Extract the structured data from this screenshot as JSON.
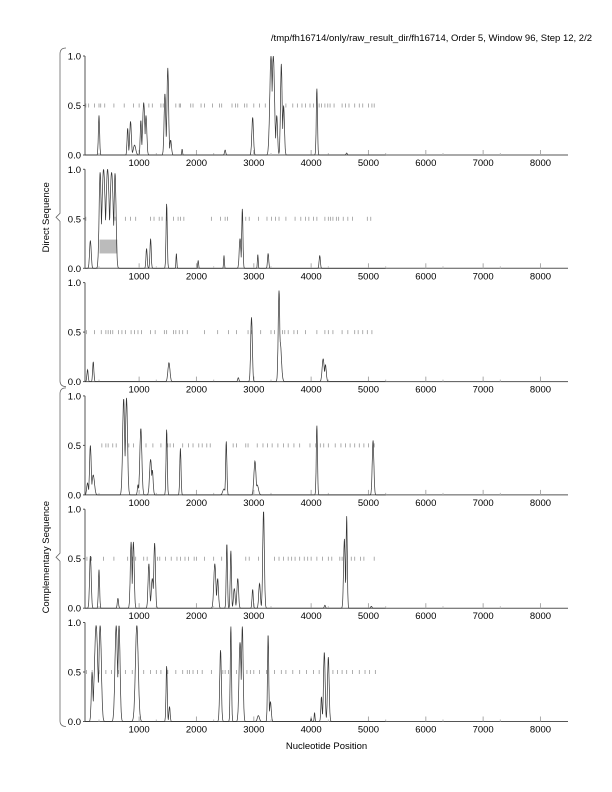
{
  "chart_data": {
    "type": "line",
    "title": "/tmp/fh16714/only/raw_result_dir/fh16714, Order 5, Window 96, Step 12, 2/2",
    "xlabel": "Nucleotide Position",
    "xlim": [
      56,
      8480
    ],
    "ylim": [
      0,
      1
    ],
    "x_ticks": [
      1000,
      2000,
      3000,
      4000,
      5000,
      6000,
      7000,
      8000
    ],
    "x_tick_labels": [
      "1000",
      "2000",
      "3000",
      "4000",
      "5000",
      "6000",
      "7000",
      "8000"
    ],
    "y_tick_labels": [
      "1.0",
      "0.5",
      "0.0"
    ],
    "groups": [
      {
        "label": "Direct Sequence",
        "panels": [
          0,
          1,
          2
        ]
      },
      {
        "label": "Complementary Sequence",
        "panels": [
          3,
          4,
          5
        ]
      }
    ],
    "panels": [
      {
        "frame": "direct-1",
        "peaks": [
          [
            300,
            0.4,
            15
          ],
          [
            800,
            0.27,
            15
          ],
          [
            850,
            0.34,
            20
          ],
          [
            920,
            0.1,
            30
          ],
          [
            1030,
            0.35,
            15
          ],
          [
            1080,
            0.53,
            25
          ],
          [
            1120,
            0.4,
            20
          ],
          [
            1450,
            0.62,
            20
          ],
          [
            1500,
            0.88,
            20
          ],
          [
            1550,
            0.15,
            20
          ],
          [
            1750,
            0.06,
            10
          ],
          [
            2500,
            0.05,
            15
          ],
          [
            2980,
            0.38,
            20
          ],
          [
            3300,
            1.0,
            30
          ],
          [
            3340,
            1.0,
            30
          ],
          [
            3400,
            0.4,
            20
          ],
          [
            3480,
            0.92,
            20
          ],
          [
            3520,
            0.5,
            20
          ],
          [
            4100,
            0.67,
            15
          ],
          [
            4620,
            0.02,
            15
          ]
        ],
        "stops": [
          70,
          120,
          220,
          300,
          330,
          400,
          560,
          740,
          900,
          1000,
          1170,
          1230,
          1380,
          1420,
          1640,
          1700,
          1720,
          1900,
          1940,
          2080,
          2140,
          2280,
          2400,
          2440,
          2620,
          2680,
          2720,
          2840,
          2880,
          3000,
          3100,
          3200,
          3560,
          3680,
          3760,
          3840,
          3900,
          3980,
          4040,
          4140,
          4180,
          4240,
          4290,
          4330,
          4400,
          4540,
          4600,
          4660,
          4760,
          4840,
          4900,
          5000,
          5060,
          5100
        ]
      },
      {
        "frame": "direct-2",
        "peaks": [
          [
            150,
            0.28,
            20
          ],
          [
            320,
            0.97,
            25
          ],
          [
            380,
            1.0,
            40
          ],
          [
            450,
            1.0,
            40
          ],
          [
            520,
            0.97,
            40
          ],
          [
            580,
            0.96,
            25
          ],
          [
            1130,
            0.2,
            15
          ],
          [
            1200,
            0.3,
            15
          ],
          [
            1480,
            0.65,
            15
          ],
          [
            1650,
            0.15,
            10
          ],
          [
            2030,
            0.08,
            10
          ],
          [
            2480,
            0.13,
            10
          ],
          [
            2760,
            0.3,
            20
          ],
          [
            2800,
            0.6,
            15
          ],
          [
            3070,
            0.14,
            10
          ],
          [
            3250,
            0.15,
            15
          ],
          [
            4150,
            0.13,
            15
          ]
        ],
        "stops": [
          70,
          580,
          760,
          850,
          940,
          1200,
          1260,
          1350,
          1400,
          1480,
          1600,
          1680,
          1720,
          1780,
          2260,
          2420,
          2500,
          2540,
          2800,
          2860,
          2920,
          3080,
          3230,
          3310,
          3380,
          3440,
          3560,
          3720,
          3820,
          3900,
          3960,
          4040,
          4100,
          4240,
          4300,
          4340,
          4380,
          4440,
          4480,
          4560,
          4640,
          4720,
          4980,
          5040
        ]
      },
      {
        "frame": "direct-3",
        "peaks": [
          [
            100,
            0.12,
            15
          ],
          [
            200,
            0.2,
            15
          ],
          [
            1520,
            0.19,
            25
          ],
          [
            2730,
            0.04,
            15
          ],
          [
            2960,
            0.65,
            20
          ],
          [
            3440,
            0.92,
            20
          ],
          [
            3460,
            0.4,
            30
          ],
          [
            4210,
            0.23,
            25
          ],
          [
            4250,
            0.17,
            20
          ]
        ],
        "stops": [
          80,
          220,
          340,
          420,
          460,
          500,
          540,
          640,
          700,
          760,
          860,
          920,
          980,
          1040,
          1200,
          1280,
          1440,
          1480,
          1600,
          1640,
          1700,
          1760,
          1840,
          2140,
          2370,
          2560,
          2700,
          2900,
          2960,
          3120,
          3300,
          3360,
          3500,
          3540,
          3600,
          3700,
          3760,
          3900,
          4100,
          4240,
          4300,
          4380,
          4540,
          4640,
          4760,
          4820,
          4900,
          4980,
          5060
        ]
      },
      {
        "frame": "complementary-1",
        "peaks": [
          [
            100,
            0.12,
            20
          ],
          [
            150,
            0.5,
            20
          ],
          [
            200,
            0.2,
            30
          ],
          [
            730,
            0.97,
            25
          ],
          [
            780,
            0.98,
            25
          ],
          [
            980,
            0.1,
            15
          ],
          [
            1030,
            0.67,
            25
          ],
          [
            1200,
            0.36,
            25
          ],
          [
            1230,
            0.25,
            20
          ],
          [
            1480,
            0.66,
            15
          ],
          [
            1720,
            0.47,
            15
          ],
          [
            2480,
            0.06,
            30
          ],
          [
            2520,
            0.54,
            15
          ],
          [
            3020,
            0.34,
            25
          ],
          [
            3060,
            0.1,
            30
          ],
          [
            4100,
            0.7,
            15
          ],
          [
            5080,
            0.55,
            20
          ]
        ],
        "stops": [
          350,
          420,
          460,
          540,
          600,
          820,
          900,
          1120,
          1240,
          1380,
          1500,
          1540,
          1600,
          1760,
          1860,
          1940,
          2040,
          2100,
          2180,
          2240,
          2640,
          2700,
          2860,
          2900,
          3060,
          3160,
          3240,
          3320,
          3420,
          3520,
          3600,
          3700,
          3800,
          3980,
          4080,
          4160,
          4220,
          4300,
          4420,
          4520,
          4600,
          4680,
          4760,
          4840,
          4920,
          5000,
          5100
        ]
      },
      {
        "frame": "complementary-2",
        "peaks": [
          [
            150,
            0.53,
            20
          ],
          [
            300,
            0.39,
            15
          ],
          [
            630,
            0.1,
            15
          ],
          [
            860,
            0.67,
            20
          ],
          [
            900,
            0.67,
            20
          ],
          [
            1170,
            0.45,
            20
          ],
          [
            1230,
            0.3,
            25
          ],
          [
            1270,
            0.66,
            20
          ],
          [
            2320,
            0.45,
            25
          ],
          [
            2370,
            0.3,
            20
          ],
          [
            2530,
            0.65,
            15
          ],
          [
            2600,
            0.58,
            15
          ],
          [
            2660,
            0.2,
            20
          ],
          [
            2720,
            0.3,
            20
          ],
          [
            2980,
            0.19,
            15
          ],
          [
            3100,
            0.25,
            20
          ],
          [
            3170,
            0.98,
            20
          ],
          [
            4240,
            0.03,
            15
          ],
          [
            4580,
            0.7,
            20
          ],
          [
            4620,
            0.93,
            15
          ],
          [
            5050,
            0.02,
            15
          ]
        ],
        "stops": [
          90,
          170,
          380,
          560,
          800,
          880,
          940,
          1080,
          1140,
          1320,
          1360,
          1460,
          1560,
          1660,
          1720,
          1800,
          1860,
          1960,
          2000,
          2140,
          2300,
          2440,
          2860,
          2920,
          3080,
          3360,
          3440,
          3520,
          3600,
          3660,
          3720,
          3800,
          3880,
          3940,
          4000,
          4100,
          4200,
          4300,
          4360,
          4500,
          4540,
          4700,
          4760,
          4860,
          4920,
          5100
        ]
      },
      {
        "frame": "complementary-3",
        "peaks": [
          [
            180,
            0.5,
            20
          ],
          [
            250,
            0.97,
            40
          ],
          [
            320,
            0.97,
            30
          ],
          [
            600,
            0.97,
            30
          ],
          [
            650,
            0.97,
            25
          ],
          [
            960,
            0.97,
            35
          ],
          [
            1480,
            0.56,
            15
          ],
          [
            1530,
            0.15,
            15
          ],
          [
            2420,
            0.72,
            20
          ],
          [
            2600,
            0.96,
            15
          ],
          [
            2760,
            0.8,
            25
          ],
          [
            2800,
            0.96,
            20
          ],
          [
            3080,
            0.06,
            25
          ],
          [
            3250,
            0.88,
            15
          ],
          [
            3290,
            0.2,
            20
          ],
          [
            4000,
            0.03,
            10
          ],
          [
            4060,
            0.09,
            10
          ],
          [
            4180,
            0.25,
            15
          ],
          [
            4230,
            0.7,
            20
          ],
          [
            4300,
            0.65,
            20
          ]
        ],
        "stops": [
          80,
          180,
          300,
          420,
          520,
          640,
          760,
          880,
          1080,
          1200,
          1300,
          1380,
          1500,
          1640,
          1760,
          1840,
          1880,
          1940,
          2020,
          2100,
          2260,
          2460,
          2500,
          2560,
          2700,
          2880,
          2940,
          3000,
          3100,
          3220,
          3360,
          3480,
          3560,
          3680,
          3800,
          3920,
          4040,
          4140,
          4380,
          4460,
          4540,
          4620,
          4720,
          4840,
          4940,
          5020,
          5120
        ]
      }
    ],
    "highlight_box": {
      "panel": 1,
      "x": [
        310,
        620
      ],
      "y": [
        0.15,
        0.29
      ],
      "color": "#bbbbbb"
    },
    "colors": {
      "line": "#333333",
      "axis": "#555555",
      "stop": "#999999"
    }
  }
}
